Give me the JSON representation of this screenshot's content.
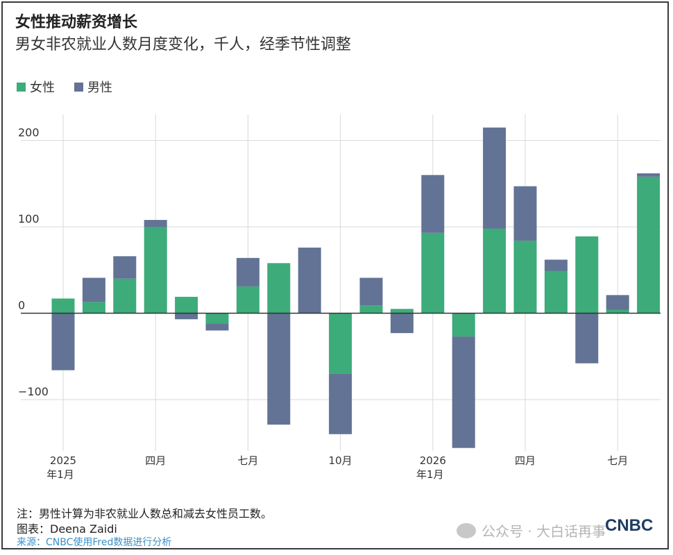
{
  "title": "女性推动薪资增长",
  "subtitle": "男女非农就业人数月度变化，千人，经季节性调整",
  "legend": [
    {
      "label": "女性",
      "color": "#3dab7a"
    },
    {
      "label": "男性",
      "color": "#637395"
    }
  ],
  "note": "注：男性计算为非农就业人数总和减去女性员工数。",
  "byline": "图表：Deena Zaidi",
  "source": "来源：CNBC使用Fred数据进行分析",
  "watermark": "公众号 · 大白话再事",
  "logo": "CNBC",
  "chart_data": {
    "type": "bar",
    "stacked": true,
    "ylim": [
      -155,
      215
    ],
    "yticks": [
      {
        "value": 200,
        "label": "200"
      },
      {
        "value": 100,
        "label": "100"
      },
      {
        "value": 0,
        "label": "0"
      },
      {
        "value": -100,
        "label": "−100"
      }
    ],
    "xticks": [
      {
        "index": 0,
        "line1": "2025",
        "line2": "年1月"
      },
      {
        "index": 3,
        "line1": "四月",
        "line2": ""
      },
      {
        "index": 6,
        "line1": "七月",
        "line2": ""
      },
      {
        "index": 9,
        "line1": "10月",
        "line2": ""
      },
      {
        "index": 12,
        "line1": "2026",
        "line2": "年1月"
      },
      {
        "index": 15,
        "line1": "四月",
        "line2": ""
      },
      {
        "index": 18,
        "line1": "七月",
        "line2": ""
      }
    ],
    "series": [
      {
        "name": "女性",
        "color": "#3dab7a",
        "values": [
          17,
          13,
          40,
          100,
          19,
          -12,
          31,
          58,
          0,
          -70,
          9,
          5,
          93,
          -27,
          98,
          84,
          49,
          89,
          4,
          158
        ]
      },
      {
        "name": "男性",
        "color": "#637395",
        "values": [
          -66,
          28,
          26,
          8,
          -7,
          -8,
          33,
          -129,
          76,
          -70,
          32,
          -23,
          67,
          -129,
          117,
          63,
          13,
          -58,
          17,
          4
        ]
      }
    ]
  }
}
